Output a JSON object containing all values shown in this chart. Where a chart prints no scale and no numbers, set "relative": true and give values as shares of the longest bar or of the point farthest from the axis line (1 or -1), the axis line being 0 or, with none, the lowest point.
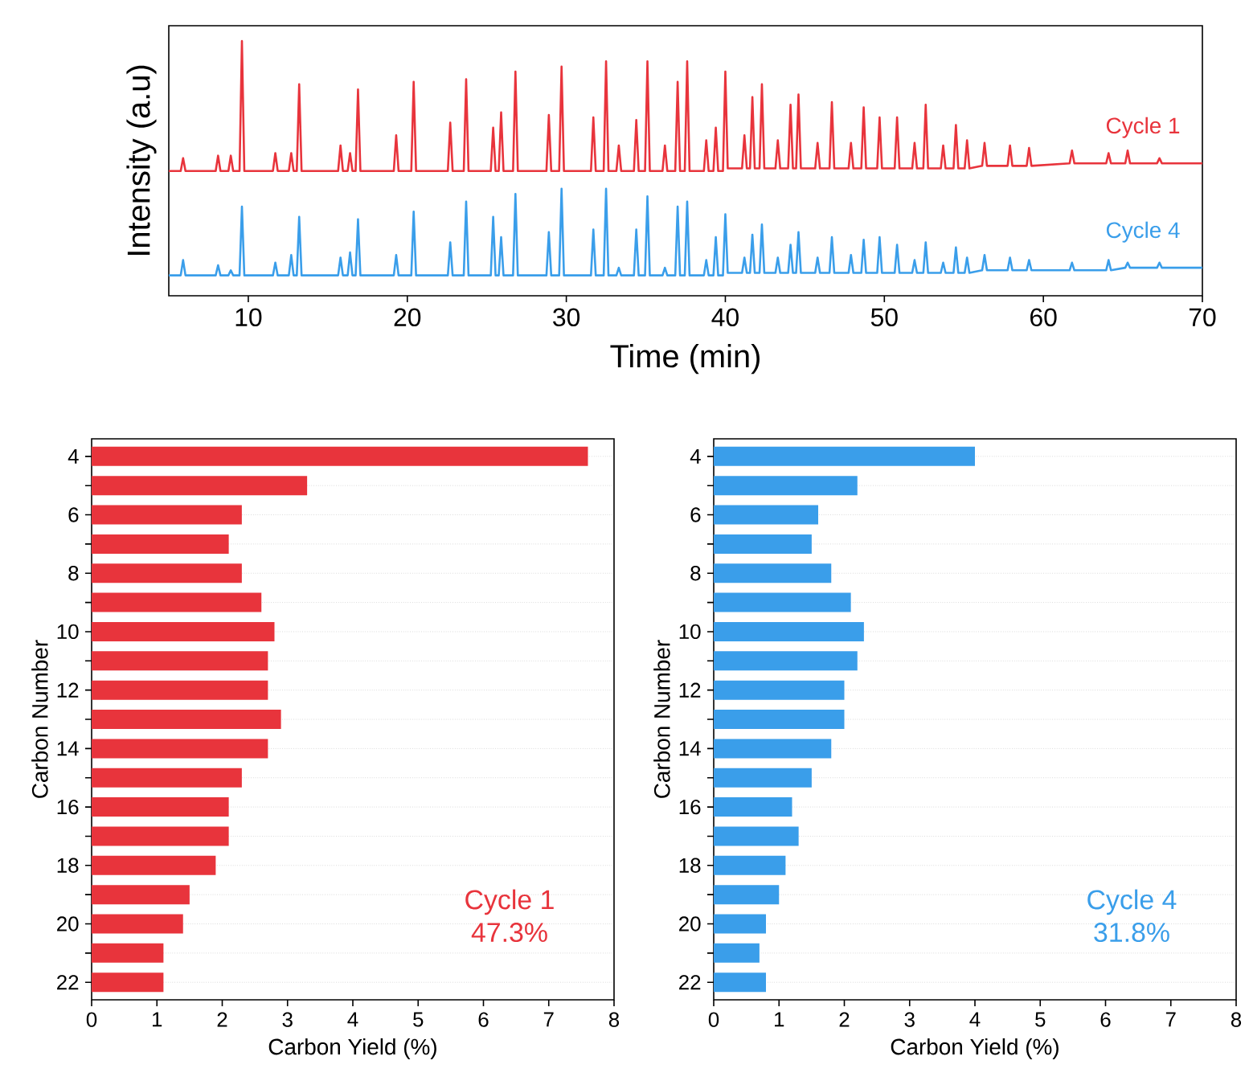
{
  "chart_data": [
    {
      "type": "line",
      "relative": true,
      "xlabel": "Time (min)",
      "ylabel": "Intensity (a.u)",
      "tick_labels": "x",
      "xlim": [
        5,
        70
      ],
      "xticks": [
        10,
        20,
        30,
        40,
        50,
        60,
        70
      ],
      "x": [
        5,
        5.75,
        5.9,
        6.05,
        7.95,
        8.1,
        8.25,
        8.75,
        8.9,
        9.05,
        9.45,
        9.6,
        9.75,
        11.55,
        11.7,
        11.85,
        12.55,
        12.7,
        12.85,
        13.05,
        13.2,
        13.35,
        15.65,
        15.8,
        15.95,
        16.25,
        16.4,
        16.55,
        16.75,
        16.9,
        17.05,
        19.15,
        19.3,
        19.45,
        20.25,
        20.4,
        20.55,
        22.55,
        22.7,
        22.85,
        23.55,
        23.7,
        23.85,
        25.25,
        25.4,
        25.55,
        25.75,
        25.9,
        26.05,
        26.65,
        26.8,
        26.95,
        28.75,
        28.9,
        29.05,
        29.55,
        29.7,
        29.85,
        31.55,
        31.7,
        31.85,
        32.35,
        32.5,
        32.65,
        33.15,
        33.3,
        33.45,
        34.25,
        34.4,
        34.55,
        34.95,
        35.1,
        35.25,
        36.05,
        36.2,
        36.35,
        36.85,
        37.0,
        37.15,
        37.45,
        37.6,
        37.75,
        38.65,
        38.8,
        38.95,
        39.25,
        39.4,
        39.55,
        39.85,
        40.0,
        40.15,
        41.05,
        41.2,
        41.35,
        41.55,
        41.7,
        41.85,
        42.15,
        42.3,
        42.45,
        43.15,
        43.3,
        43.45,
        43.95,
        44.1,
        44.25,
        44.45,
        44.6,
        44.75,
        45.65,
        45.8,
        45.95,
        46.55,
        46.7,
        46.85,
        47.75,
        47.9,
        48.05,
        48.55,
        48.7,
        48.85,
        49.55,
        49.7,
        49.85,
        50.65,
        50.8,
        50.95,
        51.75,
        51.9,
        52.05,
        52.45,
        52.6,
        52.75,
        53.55,
        53.7,
        53.85,
        54.35,
        54.5,
        54.65,
        55.05,
        55.2,
        55.35,
        56.15,
        56.3,
        56.45,
        57.75,
        57.9,
        58.05,
        58.95,
        59.1,
        59.25,
        61.65,
        61.8,
        61.95,
        63.95,
        64.1,
        64.25,
        65.15,
        65.3,
        65.45,
        67.15,
        67.3,
        67.45,
        70
      ],
      "series": [
        {
          "name": "Cycle 1",
          "color": "#e8343c",
          "values": [
            0.49,
            0.49,
            0.54,
            0.49,
            0.49,
            0.55,
            0.49,
            0.49,
            0.55,
            0.49,
            0.49,
            1.0,
            0.49,
            0.49,
            0.56,
            0.49,
            0.49,
            0.56,
            0.49,
            0.49,
            0.83,
            0.49,
            0.49,
            0.59,
            0.49,
            0.49,
            0.56,
            0.49,
            0.49,
            0.81,
            0.49,
            0.49,
            0.63,
            0.49,
            0.49,
            0.84,
            0.49,
            0.49,
            0.68,
            0.49,
            0.49,
            0.85,
            0.49,
            0.49,
            0.66,
            0.49,
            0.49,
            0.72,
            0.49,
            0.49,
            0.88,
            0.49,
            0.49,
            0.71,
            0.49,
            0.49,
            0.9,
            0.49,
            0.49,
            0.7,
            0.49,
            0.49,
            0.92,
            0.49,
            0.49,
            0.59,
            0.49,
            0.49,
            0.69,
            0.49,
            0.49,
            0.92,
            0.49,
            0.49,
            0.59,
            0.49,
            0.49,
            0.84,
            0.49,
            0.49,
            0.92,
            0.49,
            0.49,
            0.61,
            0.49,
            0.49,
            0.66,
            0.49,
            0.49,
            0.88,
            0.5,
            0.5,
            0.63,
            0.5,
            0.5,
            0.78,
            0.5,
            0.5,
            0.83,
            0.5,
            0.5,
            0.61,
            0.5,
            0.5,
            0.75,
            0.5,
            0.5,
            0.79,
            0.5,
            0.5,
            0.6,
            0.5,
            0.5,
            0.76,
            0.5,
            0.5,
            0.6,
            0.5,
            0.5,
            0.74,
            0.5,
            0.5,
            0.7,
            0.5,
            0.5,
            0.7,
            0.5,
            0.5,
            0.6,
            0.5,
            0.5,
            0.75,
            0.5,
            0.5,
            0.59,
            0.5,
            0.5,
            0.67,
            0.5,
            0.5,
            0.61,
            0.5,
            0.51,
            0.6,
            0.51,
            0.51,
            0.59,
            0.51,
            0.51,
            0.58,
            0.51,
            0.52,
            0.57,
            0.52,
            0.52,
            0.56,
            0.52,
            0.52,
            0.57,
            0.52,
            0.52,
            0.54,
            0.52,
            0.52
          ]
        },
        {
          "name": "Cycle 4",
          "color": "#3a9eea",
          "values": [
            0.08,
            0.08,
            0.14,
            0.08,
            0.08,
            0.12,
            0.08,
            0.08,
            0.1,
            0.08,
            0.08,
            0.35,
            0.08,
            0.08,
            0.13,
            0.08,
            0.08,
            0.16,
            0.08,
            0.08,
            0.31,
            0.08,
            0.08,
            0.15,
            0.08,
            0.08,
            0.17,
            0.08,
            0.08,
            0.3,
            0.08,
            0.08,
            0.16,
            0.08,
            0.08,
            0.33,
            0.08,
            0.08,
            0.21,
            0.08,
            0.08,
            0.37,
            0.08,
            0.08,
            0.31,
            0.08,
            0.08,
            0.23,
            0.08,
            0.08,
            0.4,
            0.08,
            0.08,
            0.25,
            0.08,
            0.08,
            0.42,
            0.08,
            0.08,
            0.26,
            0.08,
            0.08,
            0.42,
            0.08,
            0.08,
            0.11,
            0.08,
            0.08,
            0.26,
            0.08,
            0.08,
            0.39,
            0.08,
            0.08,
            0.11,
            0.08,
            0.08,
            0.35,
            0.08,
            0.08,
            0.37,
            0.08,
            0.08,
            0.14,
            0.08,
            0.08,
            0.23,
            0.08,
            0.08,
            0.32,
            0.09,
            0.09,
            0.15,
            0.09,
            0.09,
            0.24,
            0.09,
            0.09,
            0.28,
            0.09,
            0.09,
            0.15,
            0.09,
            0.09,
            0.2,
            0.09,
            0.09,
            0.25,
            0.09,
            0.09,
            0.15,
            0.09,
            0.09,
            0.23,
            0.09,
            0.09,
            0.16,
            0.09,
            0.09,
            0.22,
            0.09,
            0.09,
            0.23,
            0.09,
            0.09,
            0.2,
            0.09,
            0.09,
            0.14,
            0.09,
            0.09,
            0.21,
            0.09,
            0.09,
            0.13,
            0.09,
            0.09,
            0.19,
            0.09,
            0.09,
            0.15,
            0.09,
            0.1,
            0.16,
            0.1,
            0.1,
            0.15,
            0.1,
            0.1,
            0.14,
            0.1,
            0.1,
            0.13,
            0.1,
            0.1,
            0.14,
            0.1,
            0.11,
            0.13,
            0.11,
            0.11,
            0.13,
            0.11,
            0.11
          ]
        }
      ]
    },
    {
      "type": "bar",
      "orientation": "horizontal",
      "xlabel": "Carbon Yield (%)",
      "ylabel": "Carbon Number",
      "grid": "y",
      "xlim": [
        0,
        8
      ],
      "xticks": [
        0,
        1,
        2,
        3,
        4,
        5,
        6,
        7,
        8
      ],
      "categories": [
        "4",
        null,
        "6",
        null,
        "8",
        null,
        "10",
        null,
        "12",
        null,
        "14",
        null,
        "16",
        null,
        "18",
        null,
        "20",
        null,
        "22"
      ],
      "values": [
        7.6,
        3.3,
        2.3,
        2.1,
        2.3,
        2.6,
        2.8,
        2.7,
        2.7,
        2.9,
        2.7,
        2.3,
        2.1,
        2.1,
        1.9,
        1.5,
        1.4,
        1.1,
        1.1
      ],
      "color": "#e8343c",
      "annotations": [
        "Cycle 1",
        "47.3%"
      ]
    },
    {
      "type": "bar",
      "orientation": "horizontal",
      "xlabel": "Carbon Yield (%)",
      "ylabel": "Carbon Number",
      "grid": "y",
      "xlim": [
        0,
        8
      ],
      "xticks": [
        0,
        1,
        2,
        3,
        4,
        5,
        6,
        7,
        8
      ],
      "categories": [
        "4",
        null,
        "6",
        null,
        "8",
        null,
        "10",
        null,
        "12",
        null,
        "14",
        null,
        "16",
        null,
        "18",
        null,
        "20",
        null,
        "22"
      ],
      "values": [
        4.0,
        2.2,
        1.6,
        1.5,
        1.8,
        2.1,
        2.3,
        2.2,
        2.0,
        2.0,
        1.8,
        1.5,
        1.2,
        1.3,
        1.1,
        1.0,
        0.8,
        0.7,
        0.8
      ],
      "color": "#3a9eea",
      "annotations": [
        "Cycle 4",
        "31.8%"
      ]
    }
  ]
}
